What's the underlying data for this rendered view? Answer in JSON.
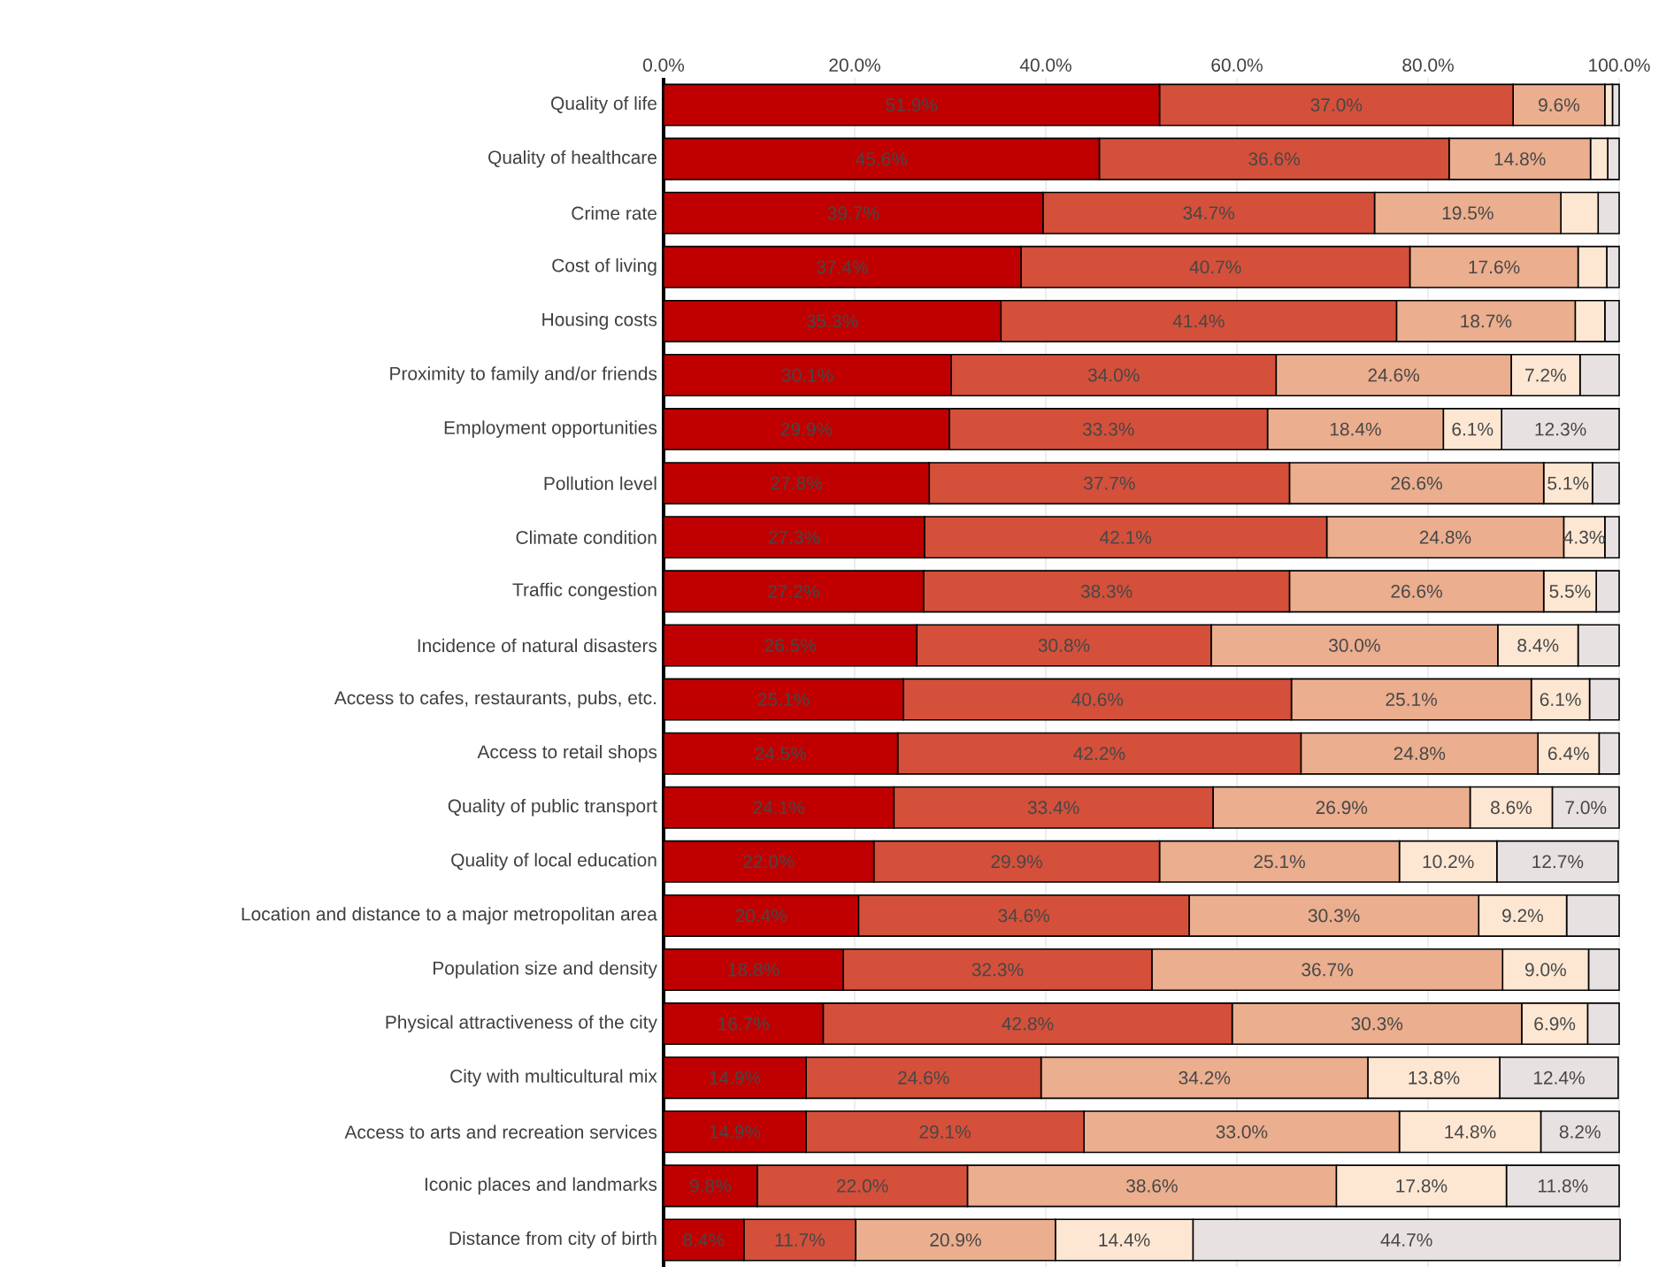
{
  "chart_data": {
    "type": "bar",
    "orientation": "horizontal",
    "stacked": true,
    "grid": "x",
    "categories": [
      "Quality of life",
      "Quality of healthcare",
      "Crime rate",
      "Cost of living",
      "Housing costs",
      "Proximity to family and/or friends",
      "Employment opportunities",
      "Pollution level",
      "Climate condition",
      "Traffic congestion",
      "Incidence of natural disasters",
      "Access to cafes, restaurants, pubs, etc.",
      "Access to retail shops",
      "Quality of public transport",
      "Quality of local education",
      "Location and distance to a major metropolitan area",
      "Population size and density",
      "Physical attractiveness of the city",
      "City with multicultural mix",
      "Access to arts and recreation services",
      "Iconic places and landmarks",
      "Distance from city of birth"
    ],
    "xlim": [
      0,
      100
    ],
    "xticks": [
      {
        "value": 0,
        "label": "0.0%"
      },
      {
        "value": 20,
        "label": "20.0%"
      },
      {
        "value": 40,
        "label": "40.0%"
      },
      {
        "value": 60,
        "label": "60.0%"
      },
      {
        "value": 80,
        "label": "80.0%"
      },
      {
        "value": 100,
        "label": "100.0%"
      }
    ],
    "series": [
      {
        "color": "#c00000",
        "values": [
          51.9,
          45.6,
          39.7,
          37.4,
          35.3,
          30.1,
          29.9,
          27.8,
          27.3,
          27.2,
          26.5,
          25.1,
          24.5,
          24.1,
          22.0,
          20.4,
          18.8,
          16.7,
          14.9,
          14.9,
          9.8,
          8.4
        ],
        "value_labels": [
          "51.9%",
          "45.6%",
          "39.7%",
          "37.4%",
          "35.3%",
          "30.1%",
          "29.9%",
          "27.8%",
          "27.3%",
          "27.2%",
          "26.5%",
          "25.1%",
          "24.5%",
          "24.1%",
          "22.0%",
          "20.4%",
          "18.8%",
          "16.7%",
          "14.9%",
          "14.9%",
          "9.8%",
          "8.4%"
        ]
      },
      {
        "color": "#d4503a",
        "values": [
          37.0,
          36.6,
          34.7,
          40.7,
          41.4,
          34.0,
          33.3,
          37.7,
          42.1,
          38.3,
          30.8,
          40.6,
          42.2,
          33.4,
          29.9,
          34.6,
          32.3,
          42.8,
          24.6,
          29.1,
          22.0,
          11.7
        ],
        "value_labels": [
          "37.0%",
          "36.6%",
          "34.7%",
          "40.7%",
          "41.4%",
          "34.0%",
          "33.3%",
          "37.7%",
          "42.1%",
          "38.3%",
          "30.8%",
          "40.6%",
          "42.2%",
          "33.4%",
          "29.9%",
          "34.6%",
          "32.3%",
          "42.8%",
          "24.6%",
          "29.1%",
          "22.0%",
          "11.7%"
        ]
      },
      {
        "color": "#ebae8e",
        "values": [
          9.6,
          14.8,
          19.5,
          17.6,
          18.7,
          24.6,
          18.4,
          26.6,
          24.8,
          26.6,
          30.0,
          25.1,
          24.8,
          26.9,
          25.1,
          30.3,
          36.7,
          30.3,
          34.2,
          33.0,
          38.6,
          20.9
        ],
        "value_labels": [
          "9.6%",
          "14.8%",
          "19.5%",
          "17.6%",
          "18.7%",
          "24.6%",
          "18.4%",
          "26.6%",
          "24.8%",
          "26.6%",
          "30.0%",
          "25.1%",
          "24.8%",
          "26.9%",
          "25.1%",
          "30.3%",
          "36.7%",
          "30.3%",
          "34.2%",
          "33.0%",
          "38.6%",
          "20.9%"
        ]
      },
      {
        "color": "#fde7d3",
        "values": [
          0.8,
          1.8,
          3.9,
          3.0,
          3.1,
          7.2,
          6.1,
          5.1,
          4.3,
          5.5,
          8.4,
          6.1,
          6.4,
          8.6,
          10.2,
          9.2,
          9.0,
          6.9,
          13.8,
          14.8,
          17.8,
          14.4
        ],
        "value_labels": [
          null,
          null,
          null,
          null,
          null,
          "7.2%",
          "6.1%",
          "5.1%",
          "4.3%",
          "5.5%",
          "8.4%",
          "6.1%",
          "6.4%",
          "8.6%",
          "10.2%",
          "9.2%",
          "9.0%",
          "6.9%",
          "13.8%",
          "14.8%",
          "17.8%",
          "14.4%"
        ]
      },
      {
        "color": "#e7e1e1",
        "values": [
          0.7,
          1.2,
          2.2,
          1.3,
          1.5,
          4.1,
          12.3,
          2.8,
          1.5,
          2.4,
          4.3,
          3.1,
          2.1,
          7.0,
          12.7,
          5.5,
          3.2,
          3.3,
          12.4,
          8.2,
          11.8,
          44.7
        ],
        "value_labels": [
          null,
          null,
          null,
          null,
          null,
          null,
          "12.3%",
          null,
          null,
          null,
          null,
          null,
          null,
          "7.0%",
          "12.7%",
          null,
          null,
          null,
          "12.4%",
          "8.2%",
          "11.8%",
          "44.7%"
        ]
      }
    ]
  }
}
